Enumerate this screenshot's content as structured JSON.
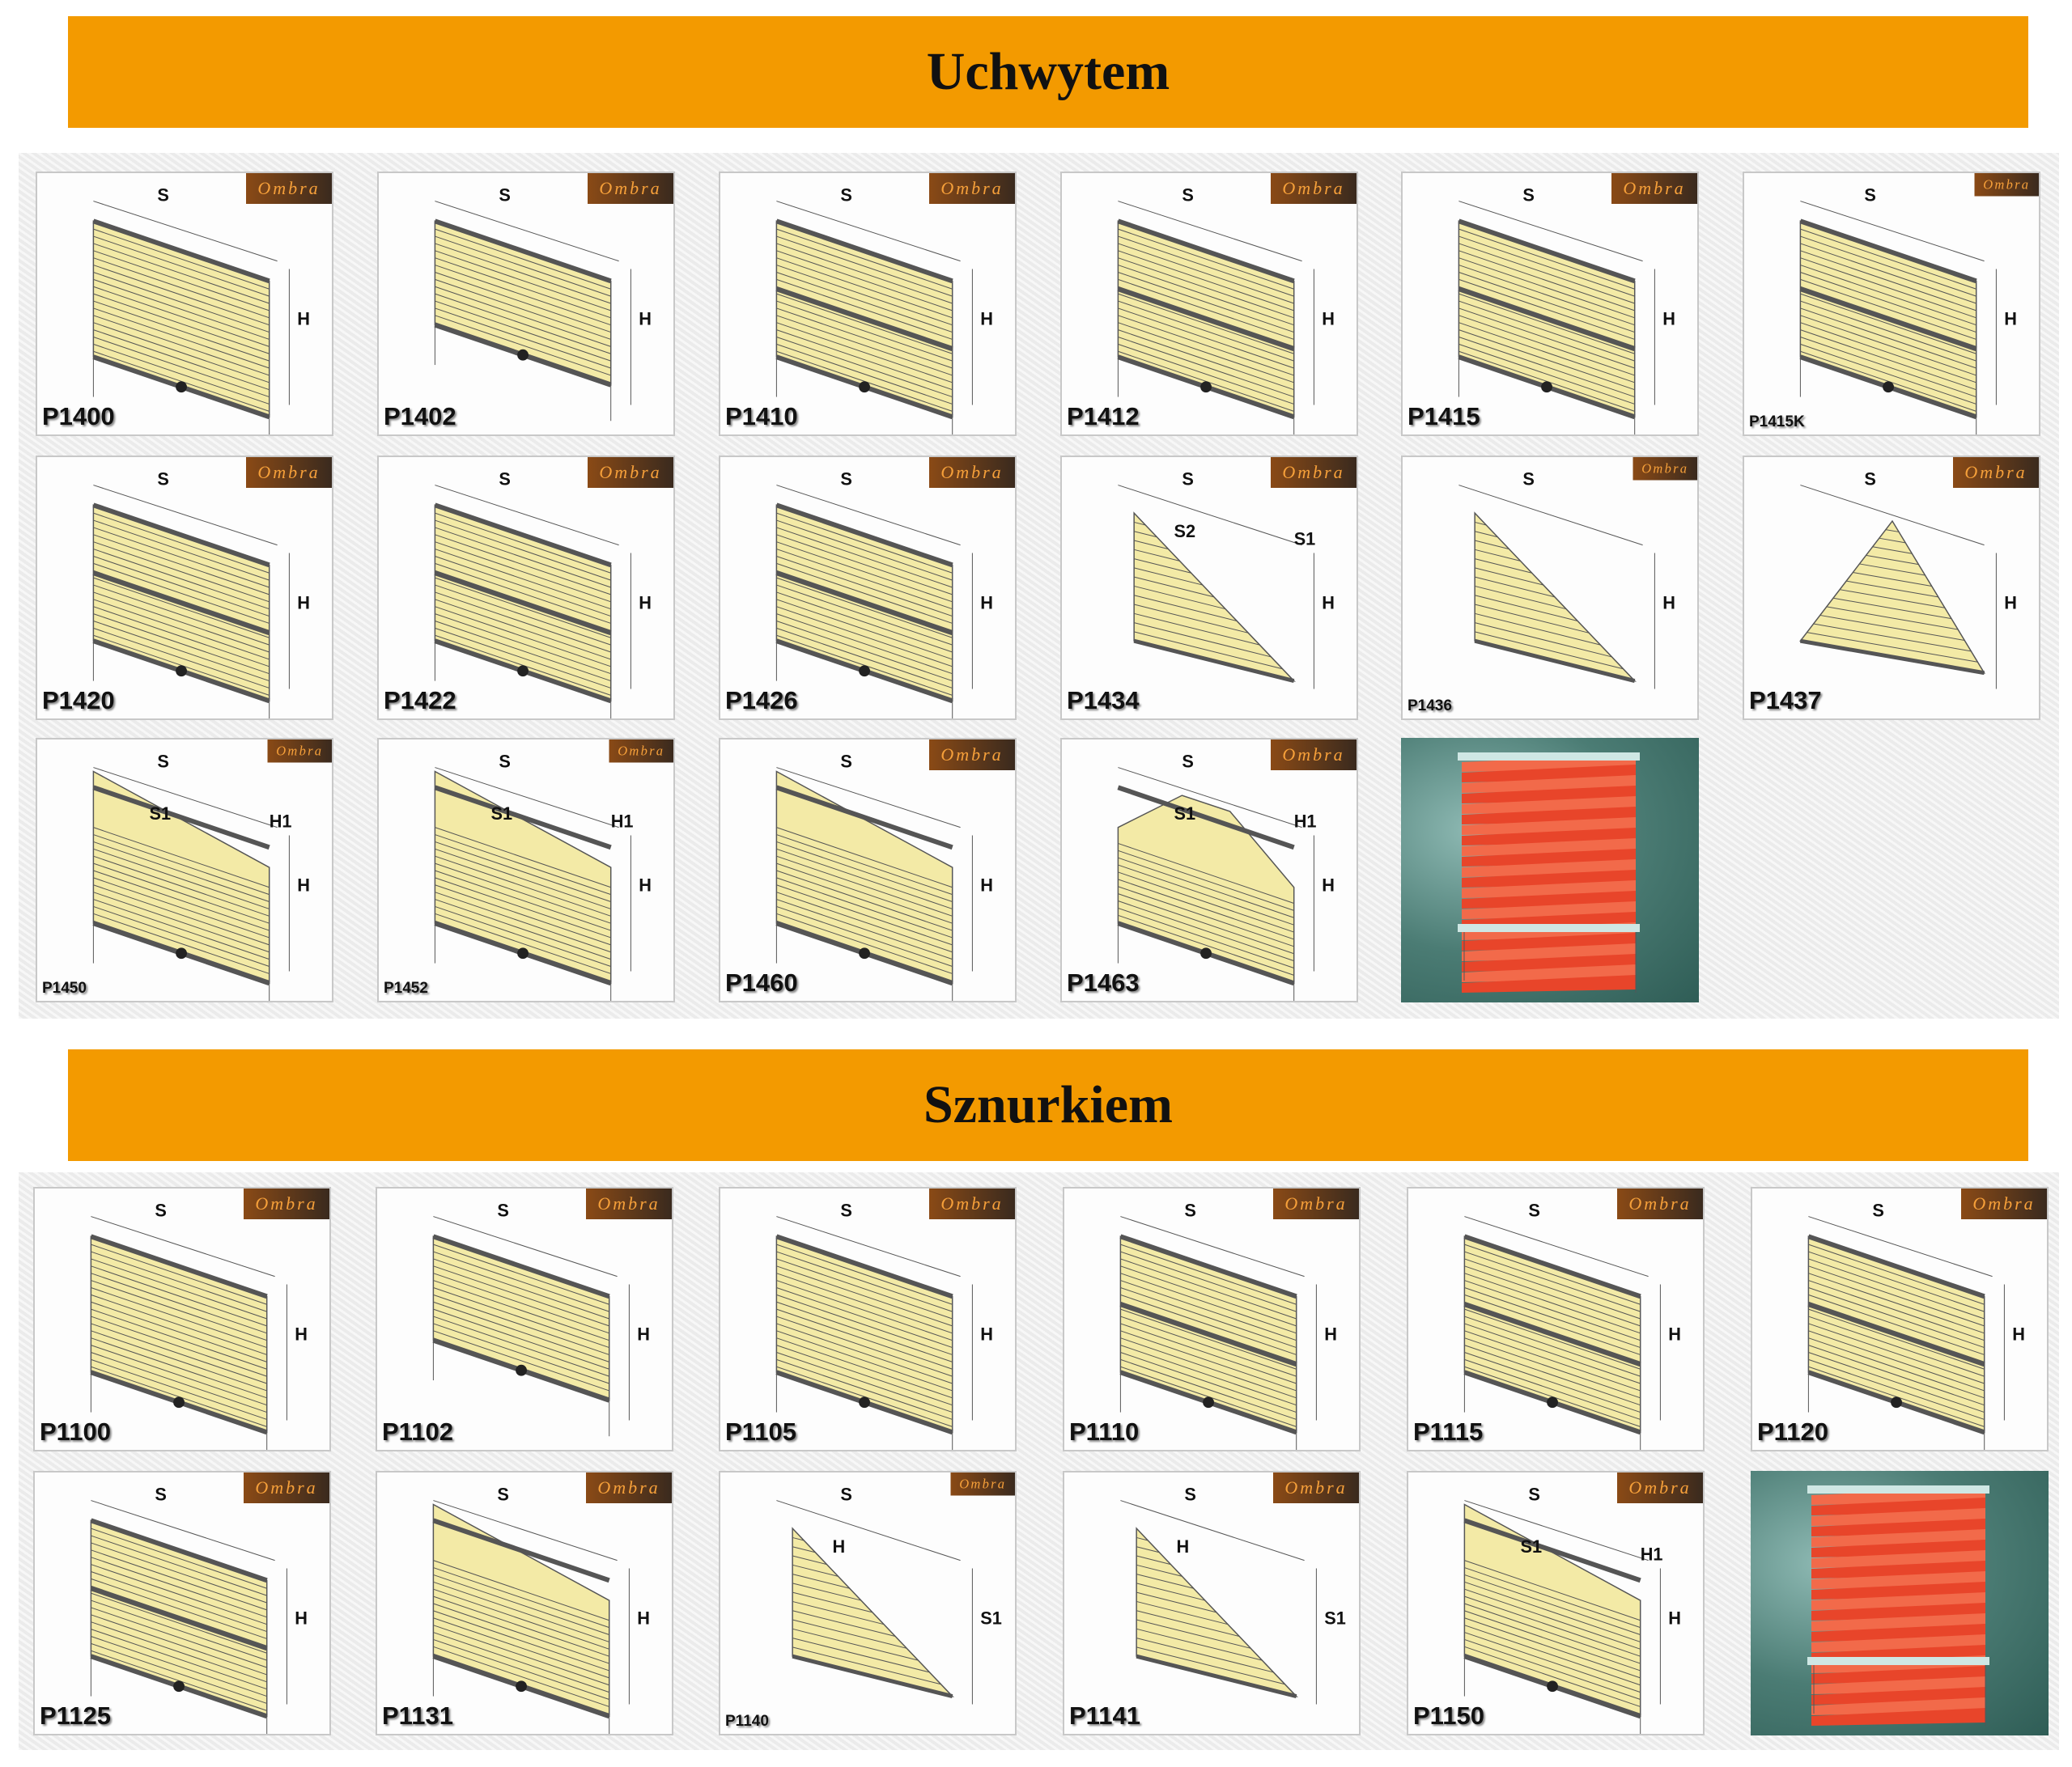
{
  "sections": [
    {
      "title": "Uchwytem",
      "tiles": [
        {
          "code": "P1400",
          "shape": "rect",
          "dims": [
            "S",
            "H"
          ]
        },
        {
          "code": "P1402",
          "shape": "rect-low",
          "dims": [
            "S",
            "H"
          ]
        },
        {
          "code": "P1410",
          "shape": "rect-top",
          "dims": [
            "S",
            "H"
          ]
        },
        {
          "code": "P1412",
          "shape": "rect-top",
          "dims": [
            "S",
            "H"
          ]
        },
        {
          "code": "P1415",
          "shape": "rect-top",
          "dims": [
            "S",
            "H"
          ]
        },
        {
          "code": "P1415K",
          "shape": "double",
          "dims": [
            "S",
            "H"
          ],
          "small": true
        },
        {
          "code": "P1420",
          "shape": "double",
          "dims": [
            "S",
            "H"
          ]
        },
        {
          "code": "P1422",
          "shape": "double",
          "dims": [
            "S",
            "H"
          ]
        },
        {
          "code": "P1426",
          "shape": "double",
          "dims": [
            "S",
            "H"
          ]
        },
        {
          "code": "P1434",
          "shape": "tri-right",
          "dims": [
            "S",
            "H",
            "S2",
            "S1"
          ]
        },
        {
          "code": "P1436",
          "shape": "tri-right",
          "dims": [
            "S",
            "H"
          ],
          "small": true
        },
        {
          "code": "P1437",
          "shape": "tri",
          "dims": [
            "S",
            "H"
          ]
        },
        {
          "code": "P1450",
          "shape": "slope",
          "dims": [
            "S",
            "H",
            "S1",
            "H1"
          ],
          "small": true
        },
        {
          "code": "P1452",
          "shape": "slope",
          "dims": [
            "S",
            "H",
            "S1",
            "H1"
          ],
          "small": true
        },
        {
          "code": "P1460",
          "shape": "slope",
          "dims": [
            "S",
            "H"
          ]
        },
        {
          "code": "P1463",
          "shape": "trap",
          "dims": [
            "S",
            "H",
            "S1",
            "H1"
          ]
        },
        {
          "code": "",
          "shape": "photo",
          "dims": []
        }
      ]
    },
    {
      "title": "Sznurkiem",
      "tiles": [
        {
          "code": "P1100",
          "shape": "rect",
          "dims": [
            "S",
            "H"
          ]
        },
        {
          "code": "P1102",
          "shape": "rect-low",
          "dims": [
            "S",
            "H"
          ]
        },
        {
          "code": "P1105",
          "shape": "rect",
          "dims": [
            "S",
            "H"
          ]
        },
        {
          "code": "P1110",
          "shape": "rect-top",
          "dims": [
            "S",
            "H"
          ]
        },
        {
          "code": "P1115",
          "shape": "rect-top",
          "dims": [
            "S",
            "H"
          ]
        },
        {
          "code": "P1120",
          "shape": "double",
          "dims": [
            "S",
            "H"
          ]
        },
        {
          "code": "P1125",
          "shape": "double",
          "dims": [
            "S",
            "H"
          ]
        },
        {
          "code": "P1131",
          "shape": "slope",
          "dims": [
            "S",
            "H"
          ]
        },
        {
          "code": "P1140",
          "shape": "tri-right",
          "dims": [
            "S",
            "S1",
            "H"
          ],
          "small": true
        },
        {
          "code": "P1141",
          "shape": "tri-right",
          "dims": [
            "S",
            "S1",
            "H"
          ]
        },
        {
          "code": "P1150",
          "shape": "slope",
          "dims": [
            "S",
            "H",
            "S1",
            "H1"
          ]
        },
        {
          "code": "",
          "shape": "photo",
          "dims": []
        }
      ]
    }
  ],
  "logo_text": "Ombra",
  "colors": {
    "banner": "#f39a00",
    "fabric": "#f3eaa6",
    "photo_fabric": "#e8452a",
    "photo_bg": "#3f6e67"
  }
}
